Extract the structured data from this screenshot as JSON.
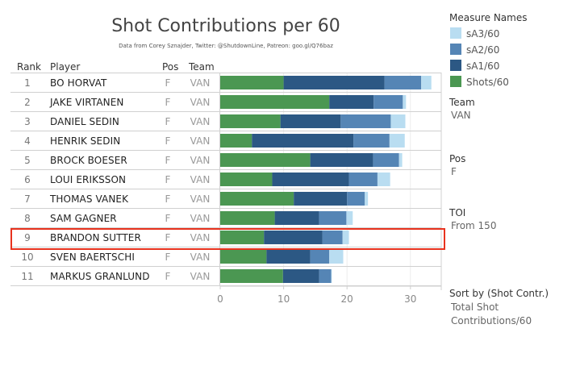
{
  "title": "Shot Contributions per 60",
  "subtitle": "Data from Corey Sznajder, Twitter: @ShutdownLine, Patreon: goo.gl/Q76baz",
  "table": {
    "headers": {
      "rank": "Rank",
      "player": "Player",
      "pos": "Pos",
      "team": "Team"
    },
    "highlighted_rank": "9"
  },
  "legend": {
    "title": "Measure Names",
    "items": [
      {
        "label": "sA3/60",
        "color": "#b9ddf1"
      },
      {
        "label": "sA2/60",
        "color": "#5585b5"
      },
      {
        "label": "sA1/60",
        "color": "#2c5884"
      },
      {
        "label": "Shots/60",
        "color": "#4b9752"
      }
    ]
  },
  "filters": {
    "team": {
      "title": "Team",
      "value": "VAN"
    },
    "pos": {
      "title": "Pos",
      "value": "F"
    },
    "toi": {
      "title": "TOI",
      "value": "From 150"
    },
    "sort": {
      "title": "Sort by (Shot Contr.)",
      "value_line1": "Total Shot",
      "value_line2": "Contributions/60"
    }
  },
  "chart_data": {
    "type": "bar",
    "orientation": "horizontal",
    "stacked": true,
    "title": "Shot Contributions per 60",
    "xlabel": "",
    "ylabel": "",
    "xlim": [
      0,
      35
    ],
    "xticks": [
      0,
      10,
      20,
      30
    ],
    "grid": true,
    "legend_position": "right",
    "categories": [
      {
        "rank": "1",
        "player": "BO HORVAT",
        "pos": "F",
        "team": "VAN"
      },
      {
        "rank": "2",
        "player": "JAKE VIRTANEN",
        "pos": "F",
        "team": "VAN"
      },
      {
        "rank": "3",
        "player": "DANIEL SEDIN",
        "pos": "F",
        "team": "VAN"
      },
      {
        "rank": "4",
        "player": "HENRIK SEDIN",
        "pos": "F",
        "team": "VAN"
      },
      {
        "rank": "5",
        "player": "BROCK BOESER",
        "pos": "F",
        "team": "VAN"
      },
      {
        "rank": "6",
        "player": "LOUI ERIKSSON",
        "pos": "F",
        "team": "VAN"
      },
      {
        "rank": "7",
        "player": "THOMAS VANEK",
        "pos": "F",
        "team": "VAN"
      },
      {
        "rank": "8",
        "player": "SAM GAGNER",
        "pos": "F",
        "team": "VAN"
      },
      {
        "rank": "9",
        "player": "BRANDON SUTTER",
        "pos": "F",
        "team": "VAN"
      },
      {
        "rank": "10",
        "player": "SVEN BAERTSCHI",
        "pos": "F",
        "team": "VAN"
      },
      {
        "rank": "11",
        "player": "MARKUS GRANLUND",
        "pos": "F",
        "team": "VAN"
      }
    ],
    "series": [
      {
        "name": "Shots/60",
        "color": "#4b9752",
        "values": [
          10.0,
          17.2,
          9.5,
          5.0,
          14.2,
          8.2,
          11.6,
          8.6,
          6.9,
          7.3,
          9.9
        ]
      },
      {
        "name": "sA1/60",
        "color": "#2c5884",
        "values": [
          15.9,
          7.0,
          9.5,
          16.0,
          9.9,
          12.1,
          8.4,
          7.0,
          9.2,
          6.9,
          5.7
        ]
      },
      {
        "name": "sA2/60",
        "color": "#5585b5",
        "values": [
          5.8,
          4.6,
          7.9,
          5.7,
          4.1,
          4.5,
          2.8,
          4.3,
          3.2,
          3.0,
          1.9
        ]
      },
      {
        "name": "sA3/60",
        "color": "#b9ddf1",
        "values": [
          1.6,
          0.5,
          2.3,
          2.4,
          0.5,
          2.0,
          0.5,
          1.0,
          1.0,
          2.2,
          0.1
        ]
      }
    ]
  }
}
